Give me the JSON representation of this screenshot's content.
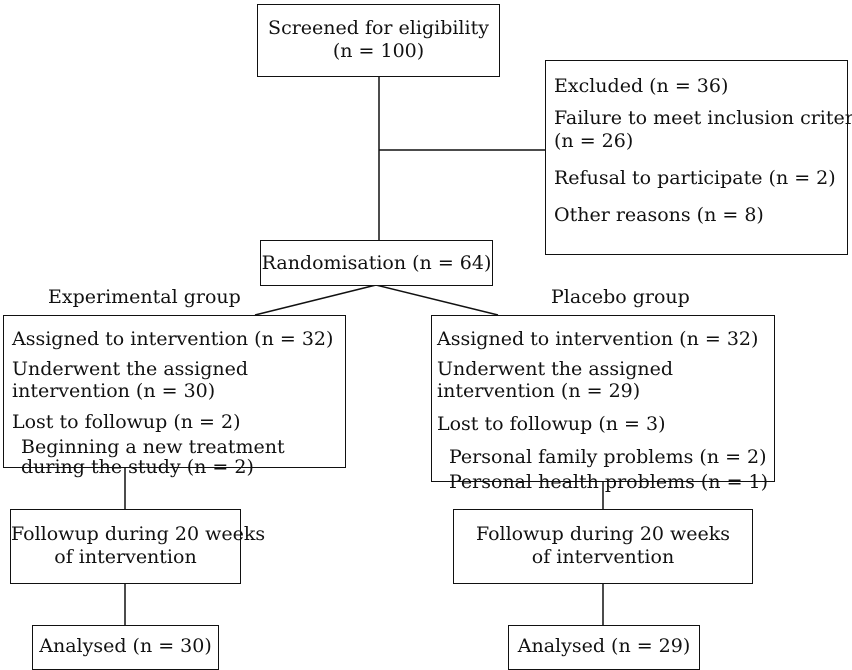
{
  "screening": {
    "title": "Screened for eligibility",
    "n": "(n = 100)"
  },
  "excluded": {
    "title": "Excluded (n = 36)",
    "reason1_line1": "Failure to meet inclusion criteria",
    "reason1_line2": "(n = 26)",
    "reason2": "Refusal to participate  (n = 2)",
    "reason3": "Other reasons (n = 8)"
  },
  "randomisation": {
    "label": "Randomisation (n = 64)"
  },
  "experimental": {
    "group_label": "Experimental group",
    "assigned": "Assigned to intervention (n = 32)",
    "underwent_line1": "Underwent the assigned",
    "underwent_line2": "intervention (n = 30)",
    "lost": "Lost to followup (n = 2)",
    "reason_line1": "Beginning a new treatment",
    "reason_line2": "during the study (n = 2)",
    "followup_line1": "Followup during 20 weeks",
    "followup_line2": "of intervention",
    "analysed": "Analysed (n = 30)"
  },
  "placebo": {
    "group_label": "Placebo group",
    "assigned": "Assigned to intervention (n = 32)",
    "underwent_line1": "Underwent the assigned",
    "underwent_line2": "intervention (n = 29)",
    "lost": "Lost to followup (n = 3)",
    "reason1": "Personal family problems (n = 2)",
    "reason2": "Personal health problems  (n = 1)",
    "followup_line1": "Followup during 20 weeks",
    "followup_line2": "of intervention",
    "analysed": "Analysed (n = 29)"
  }
}
